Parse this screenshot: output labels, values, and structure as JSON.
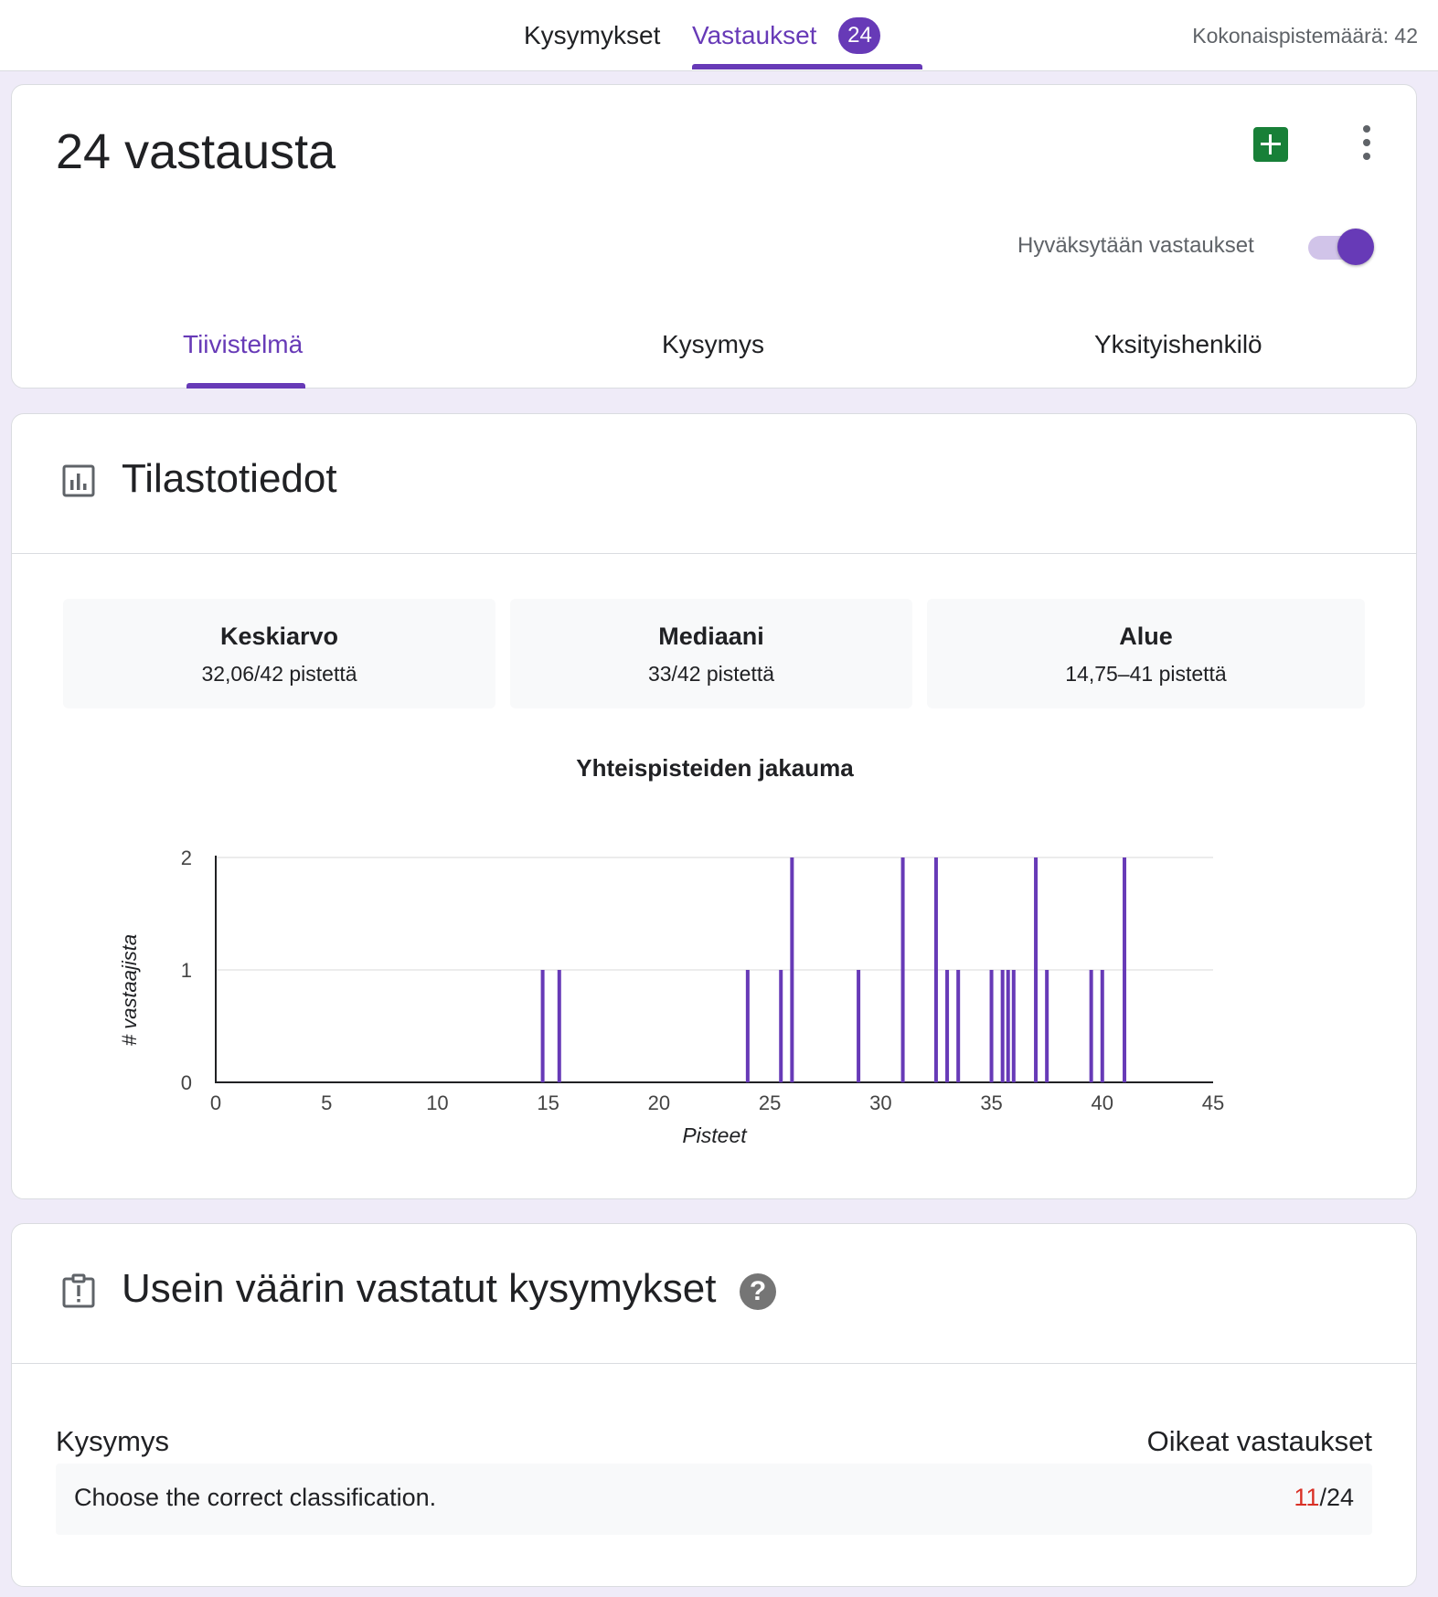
{
  "topbar": {
    "tab_questions": "Kysymykset",
    "tab_responses": "Vastaukset",
    "responses_count": "24",
    "total_points": "Kokonaispistemäärä: 42"
  },
  "summary_card": {
    "title": "24 vastausta",
    "accepting_label": "Hyväksytään vastaukset",
    "accepting_on": true,
    "tabs": [
      "Tiivistelmä",
      "Kysymys",
      "Yksityishenkilö"
    ],
    "active_tab": "Tiivistelmä"
  },
  "stats": {
    "title": "Tilastotiedot",
    "boxes": [
      {
        "name": "Keskiarvo",
        "value": "32,06/42 pistettä"
      },
      {
        "name": "Mediaani",
        "value": "33/42 pistettä"
      },
      {
        "name": "Alue",
        "value": "14,75–41 pistettä"
      }
    ]
  },
  "chart_data": {
    "type": "bar",
    "title": "Yhteispisteiden jakauma",
    "xlabel": "Pisteet",
    "ylabel": "# vastaajista",
    "xlim": [
      0,
      45
    ],
    "ylim": [
      0,
      2
    ],
    "x_ticks": [
      0,
      5,
      10,
      15,
      20,
      25,
      30,
      35,
      40,
      45
    ],
    "y_ticks": [
      0,
      1,
      2
    ],
    "grid": true,
    "color": "#673ab7",
    "points": [
      {
        "x": 14.75,
        "y": 1
      },
      {
        "x": 15.5,
        "y": 1
      },
      {
        "x": 24,
        "y": 1
      },
      {
        "x": 25.5,
        "y": 1
      },
      {
        "x": 26,
        "y": 2
      },
      {
        "x": 29,
        "y": 1
      },
      {
        "x": 31,
        "y": 2
      },
      {
        "x": 32.5,
        "y": 2
      },
      {
        "x": 33,
        "y": 1
      },
      {
        "x": 33.5,
        "y": 1
      },
      {
        "x": 35,
        "y": 1
      },
      {
        "x": 35.5,
        "y": 1
      },
      {
        "x": 35.75,
        "y": 1
      },
      {
        "x": 36,
        "y": 1
      },
      {
        "x": 37,
        "y": 2
      },
      {
        "x": 37.5,
        "y": 1
      },
      {
        "x": 39.5,
        "y": 1
      },
      {
        "x": 40,
        "y": 1
      },
      {
        "x": 41,
        "y": 2
      }
    ]
  },
  "wrong_questions": {
    "title": "Usein väärin vastatut kysymykset",
    "col_question": "Kysymys",
    "col_correct": "Oikeat vastaukset",
    "rows": [
      {
        "question": "Choose the correct classification.",
        "correct": "11",
        "total": "/24"
      }
    ]
  }
}
